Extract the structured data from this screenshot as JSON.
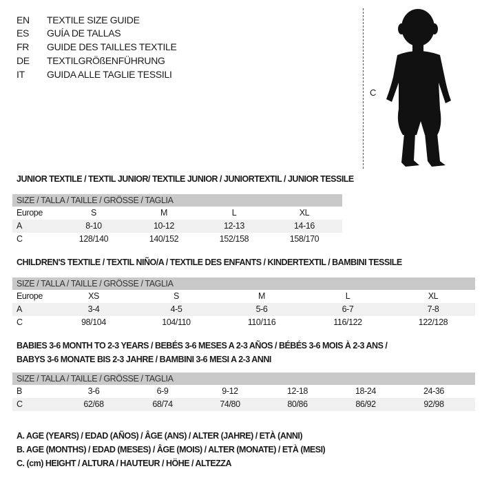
{
  "languages": [
    {
      "code": "EN",
      "text": "TEXTILE SIZE GUIDE"
    },
    {
      "code": "ES",
      "text": "GUÍA DE TALLAS"
    },
    {
      "code": "FR",
      "text": "GUIDE DES TAILLES TEXTILE"
    },
    {
      "code": "DE",
      "text": "TEXTILGRÖßENFÜHRUNG"
    },
    {
      "code": "IT",
      "text": "GUIDA ALLE TAGLIE TESSILI"
    }
  ],
  "figure": {
    "measure_label": "C",
    "icon": "child-silhouette"
  },
  "junior": {
    "title": "JUNIOR TEXTILE / TEXTIL JUNIOR/ TEXTILE JUNIOR / JUNIORTEXTIL / JUNIOR TESSILE",
    "header": "SIZE / TALLA / TAILLE / GRÖSSE / TAGLIA",
    "rows": [
      {
        "label": "Europe",
        "values": [
          "S",
          "M",
          "L",
          "XL"
        ]
      },
      {
        "label": "A",
        "values": [
          "8-10",
          "10-12",
          "12-13",
          "14-16"
        ]
      },
      {
        "label": "C",
        "values": [
          "128/140",
          "140/152",
          "152/158",
          "158/170"
        ]
      }
    ]
  },
  "children": {
    "title": "CHILDREN'S TEXTILE / TEXTIL NIÑO/A / TEXTILE DES ENFANTS / KINDERTEXTIL / BAMBINI TESSILE",
    "header": "SIZE / TALLA / TAILLE / GRÖSSE / TAGLIA",
    "rows": [
      {
        "label": "Europe",
        "values": [
          "XS",
          "S",
          "M",
          "L",
          "XL"
        ]
      },
      {
        "label": "A",
        "values": [
          "3-4",
          "4-5",
          "5-6",
          "6-7",
          "7-8"
        ]
      },
      {
        "label": "C",
        "values": [
          "98/104",
          "104/110",
          "110/116",
          "116/122",
          "122/128"
        ]
      }
    ]
  },
  "babies": {
    "title_line1": "BABIES 3-6 MONTH TO 2-3 YEARS / BEBÉS 3-6 MESES A 2-3 AÑOS / BÉBÉS 3-6 MOIS À 2-3 ANS /",
    "title_line2": "BABYS 3-6 MONATE BIS 2-3 JAHRE / BAMBINI 3-6 MESI A 2-3 ANNI",
    "header": "SIZE / TALLA / TAILLE / GRÖSSE / TAGLIA",
    "rows": [
      {
        "label": "B",
        "values": [
          "3-6",
          "6-9",
          "9-12",
          "12-18",
          "18-24",
          "24-36"
        ]
      },
      {
        "label": "C",
        "values": [
          "62/68",
          "68/74",
          "74/80",
          "80/86",
          "86/92",
          "92/98"
        ]
      }
    ]
  },
  "legend": [
    "A. AGE (YEARS) / EDAD (AÑOS) / ÂGE (ANS) / ALTER (JAHRE) / ETÀ (ANNI)",
    "B. AGE (MONTHS) / EDAD (MESES) / ÂGE (MOIS) / ALTER (MONATE) / ETÀ (MESI)",
    "C. (cm) HEIGHT / ALTURA / HAUTEUR / HÖHE / ALTEZZA"
  ]
}
